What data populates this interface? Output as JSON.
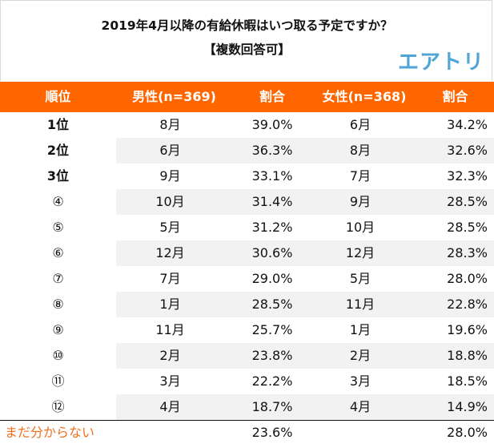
{
  "title": {
    "line1": "2019年4月以降の有給休暇はいつ取る予定ですか？",
    "line2": "【複数回答可】",
    "logo": "エアトリ"
  },
  "colors": {
    "header_bg": "#ff6600",
    "rank_text": "#f07020",
    "logo": "#4fa5d6",
    "alt_row": "#f2f2f2"
  },
  "table": {
    "headers": [
      "順位",
      "男性(n=369)",
      "割合",
      "女性(n=368)",
      "割合"
    ],
    "rows": [
      {
        "rank": "1位",
        "male_month": "8月",
        "male_pct": "39.0%",
        "female_month": "6月",
        "female_pct": "34.2%"
      },
      {
        "rank": "2位",
        "male_month": "6月",
        "male_pct": "36.3%",
        "female_month": "8月",
        "female_pct": "32.6%"
      },
      {
        "rank": "3位",
        "male_month": "9月",
        "male_pct": "33.1%",
        "female_month": "7月",
        "female_pct": "32.3%"
      },
      {
        "rank": "④",
        "male_month": "10月",
        "male_pct": "31.4%",
        "female_month": "9月",
        "female_pct": "28.5%"
      },
      {
        "rank": "⑤",
        "male_month": "5月",
        "male_pct": "31.2%",
        "female_month": "10月",
        "female_pct": "28.5%"
      },
      {
        "rank": "⑥",
        "male_month": "12月",
        "male_pct": "30.6%",
        "female_month": "12月",
        "female_pct": "28.3%"
      },
      {
        "rank": "⑦",
        "male_month": "7月",
        "male_pct": "29.0%",
        "female_month": "5月",
        "female_pct": "28.0%"
      },
      {
        "rank": "⑧",
        "male_month": "1月",
        "male_pct": "28.5%",
        "female_month": "11月",
        "female_pct": "22.8%"
      },
      {
        "rank": "⑨",
        "male_month": "11月",
        "male_pct": "25.7%",
        "female_month": "1月",
        "female_pct": "19.6%"
      },
      {
        "rank": "⑩",
        "male_month": "2月",
        "male_pct": "23.8%",
        "female_month": "2月",
        "female_pct": "18.8%"
      },
      {
        "rank": "⑪",
        "male_month": "3月",
        "male_pct": "22.2%",
        "female_month": "3月",
        "female_pct": "18.5%"
      },
      {
        "rank": "⑫",
        "male_month": "4月",
        "male_pct": "18.7%",
        "female_month": "4月",
        "female_pct": "14.9%"
      }
    ],
    "footer": {
      "label": "まだ分からない",
      "male_pct": "23.6%",
      "female_pct": "28.0%"
    }
  }
}
